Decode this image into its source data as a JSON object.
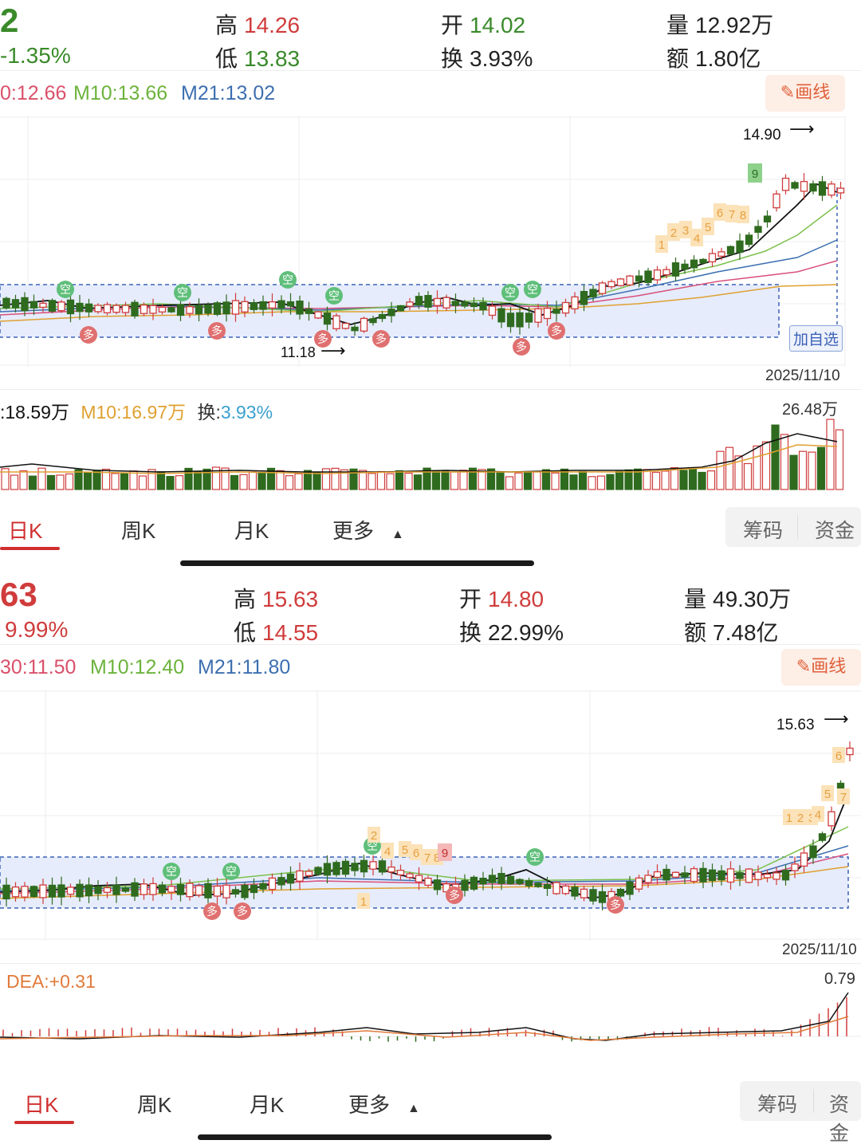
{
  "panel1": {
    "price_partial": "2",
    "change_pct": "-1.35%",
    "high_label": "高",
    "high": "14.26",
    "low_label": "低",
    "low": "13.83",
    "open_label": "开",
    "open": "14.02",
    "turnover_label": "换",
    "turnover": "3.93%",
    "volume_label": "量",
    "volume": "12.92万",
    "amount_label": "额",
    "amount": "1.80亿",
    "ma": {
      "m5": "0:12.66",
      "m10": "M10:13.66",
      "m21": "M21:13.02"
    },
    "draw_button": "画线",
    "price_high_marker": "14.90",
    "price_low_marker": "11.18",
    "add_watchlist": "加自选",
    "date": "2025/11/10",
    "vol_ma": {
      "m5": ":18.59万",
      "m10": "M10:16.97万",
      "turn_label": "换:",
      "turn_value": "3.93%"
    },
    "vol_max": "26.48万",
    "tabs": [
      "日K",
      "周K",
      "月K",
      "更多"
    ],
    "tools": [
      "筹码",
      "资金"
    ]
  },
  "panel2": {
    "price_partial": "63",
    "change_pct": "9.99%",
    "high_label": "高",
    "high": "15.63",
    "low_label": "低",
    "low": "14.55",
    "open_label": "开",
    "open": "14.80",
    "turnover_label": "换",
    "turnover": "22.99%",
    "volume_label": "量",
    "volume": "49.30万",
    "amount_label": "额",
    "amount": "7.48亿",
    "ma": {
      "m5": "30:11.50",
      "m10": "M10:12.40",
      "m21": "M21:11.80"
    },
    "draw_button": "画线",
    "price_high_marker": "15.63",
    "date": "2025/11/10",
    "macd_label": "DEA:+0.31",
    "macd_max": "0.79",
    "tabs": [
      "日K",
      "周K",
      "月K",
      "更多"
    ],
    "tools": [
      "筹码",
      "资金"
    ]
  },
  "colors": {
    "up": "#d03c3c",
    "down": "#2f6b1f",
    "ma5": "#111111",
    "ma10": "#7cc04c",
    "ma21": "#3d6fb0",
    "accent": "#d03030"
  }
}
